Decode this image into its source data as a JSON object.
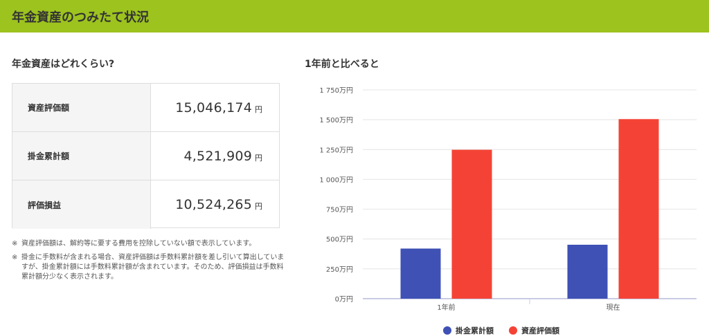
{
  "header": {
    "title": "年金資産のつみたて状況"
  },
  "summary": {
    "title": "年金資産はどれくらい?",
    "rows": [
      {
        "label": "資産評価額",
        "value": "15,046,174",
        "unit": "円"
      },
      {
        "label": "掛金累計額",
        "value": "4,521,909",
        "unit": "円"
      },
      {
        "label": "評価損益",
        "value": "10,524,265",
        "unit": "円"
      }
    ]
  },
  "notes": [
    {
      "mark": "※",
      "text": "資産評価額は、解約等に要する費用を控除していない額で表示しています。"
    },
    {
      "mark": "※",
      "text": "掛金に手数料が含まれる場合、資産評価額は手数料累計額を差し引いて算出していますが、掛金累計額には手数料累計額が含まれています。そのため、評価損益は手数料累計額分少なく表示されます。"
    }
  ],
  "chart": {
    "title": "1年前と比べると",
    "legend": [
      {
        "label": "掛金累計額",
        "color": "#3f51b5"
      },
      {
        "label": "資産評価額",
        "color": "#f44336"
      }
    ]
  },
  "chart_data": {
    "type": "bar",
    "categories": [
      "1年前",
      "現在"
    ],
    "series": [
      {
        "name": "掛金累計額",
        "color": "#3f51b5",
        "values": [
          420,
          452
        ]
      },
      {
        "name": "資産評価額",
        "color": "#f44336",
        "values": [
          1248,
          1505
        ]
      }
    ],
    "ylim": [
      0,
      1750
    ],
    "yticks": [
      "0万円",
      "250万円",
      "500万円",
      "750万円",
      "1 000万円",
      "1 250万円",
      "1 500万円",
      "1 750万円"
    ],
    "grid": true,
    "legend_position": "bottom"
  }
}
